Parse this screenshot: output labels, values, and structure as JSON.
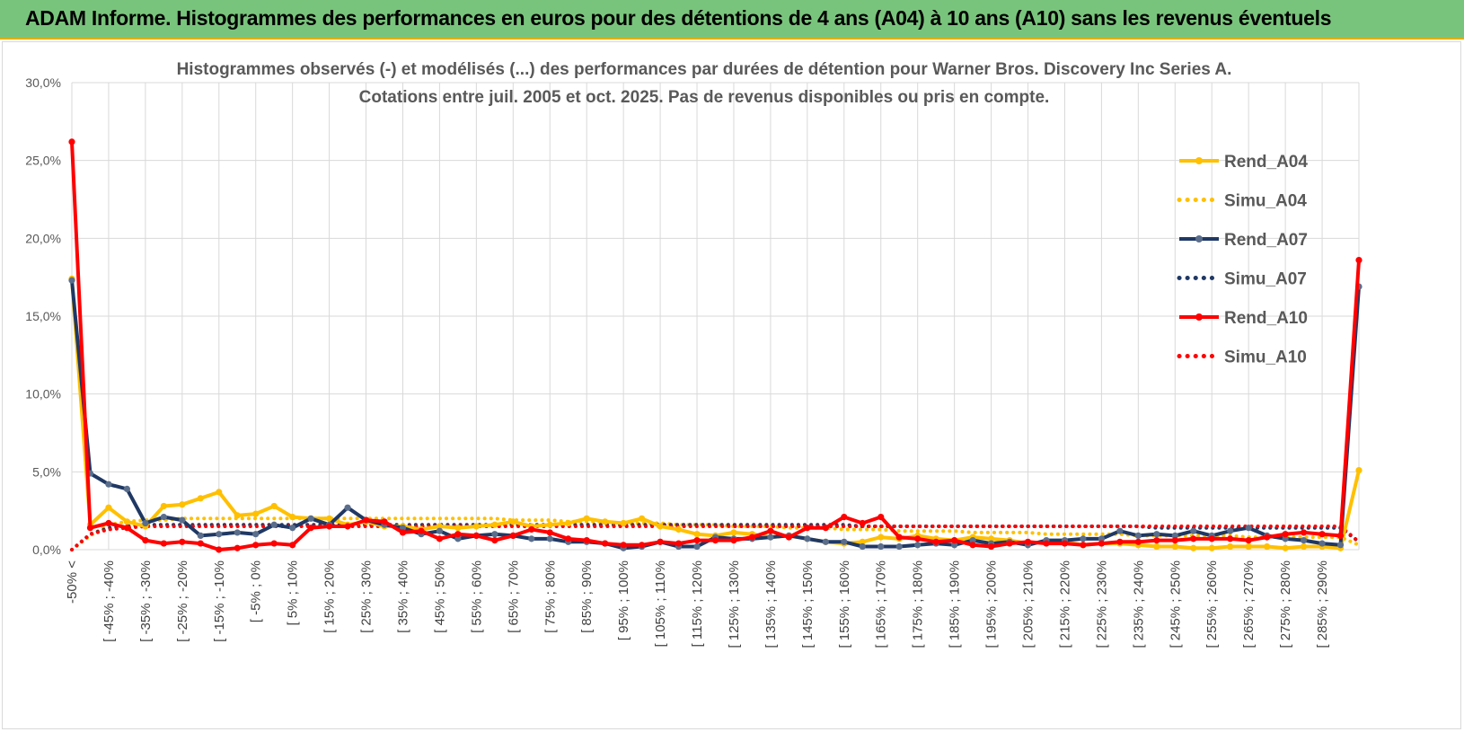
{
  "header": {
    "title": "ADAM Informe. Histogrammes des performances en euros pour des détentions de 4 ans (A04) à 10 ans (A10) sans les revenus éventuels"
  },
  "colors": {
    "banner": "#79c47c",
    "A04": "#FFC000",
    "A07": "#1F3864",
    "A10": "#FF0000",
    "grid": "#d9d9d9",
    "text": "#595959"
  },
  "chart_data": {
    "type": "line",
    "title_line1": "Histogrammes observés (-) et modélisés (...) des performances par durées de détention pour Warner Bros. Discovery Inc Series A.",
    "title_line2": "Cotations entre juil. 2005 et oct. 2025. Pas de revenus disponibles ou pris en compte.",
    "y_ticks": [
      "0,0%",
      "5,0%",
      "10,0%",
      "15,0%",
      "20,0%",
      "25,0%",
      "30,0%"
    ],
    "ylim": [
      0,
      30
    ],
    "grid": true,
    "legend_position": "right",
    "x_labels": [
      "-50% <",
      "[ -45% ; -40%",
      "[ -35% ; -30%",
      "[ -25% ; -20%",
      "[ -15% ; -10%",
      "[ -5% ; 0%",
      "[ 5% ; 10%",
      "[ 15% ; 20%",
      "[ 25% ; 30%",
      "[ 35% ; 40%",
      "[ 45% ; 50%",
      "[ 55% ; 60%",
      "[ 65% ; 70%",
      "[ 75% ; 80%",
      "[ 85% ; 90%",
      "[ 95% ; 100%",
      "[ 105% ; 110%",
      "[ 115% ; 120%",
      "[ 125% ; 130%",
      "[ 135% ; 140%",
      "[ 145% ; 150%",
      "[ 155% ; 160%",
      "[ 165% ; 170%",
      "[ 175% ; 180%",
      "[ 185% ; 190%",
      "[ 195% ; 200%",
      "[ 205% ; 210%",
      "[ 215% ; 220%",
      "[ 225% ; 230%",
      "[ 235% ; 240%",
      "[ 245% ; 250%",
      "[ 255% ; 260%",
      "[ 265% ; 270%",
      "[ 275% ; 280%",
      "[ 285% ; 290%"
    ],
    "bin_count": 71,
    "series": [
      {
        "name": "Rend_A04",
        "key": "A04",
        "style": "solid",
        "values": [
          17.4,
          1.6,
          2.7,
          1.8,
          1.5,
          2.8,
          2.9,
          3.3,
          3.7,
          2.2,
          2.3,
          2.8,
          2.1,
          2.0,
          2.0,
          1.6,
          1.8,
          1.5,
          1.5,
          1.3,
          1.5,
          1.4,
          1.5,
          1.6,
          1.8,
          1.5,
          1.6,
          1.7,
          2.0,
          1.8,
          1.7,
          2.0,
          1.5,
          1.3,
          1.0,
          0.9,
          1.1,
          1.0,
          0.8,
          0.9,
          0.7,
          0.5,
          0.4,
          0.5,
          0.8,
          0.7,
          0.9,
          0.7,
          0.6,
          0.8,
          0.7,
          0.6,
          0.4,
          0.5,
          0.5,
          0.3,
          0.4,
          0.4,
          0.3,
          0.2,
          0.2,
          0.1,
          0.1,
          0.2,
          0.2,
          0.2,
          0.1,
          0.2,
          0.2,
          0.1,
          5.1
        ]
      },
      {
        "name": "Simu_A04",
        "key": "A04",
        "style": "dotted",
        "values": [
          0.0,
          0.9,
          1.6,
          1.8,
          1.9,
          1.9,
          2.0,
          2.0,
          2.0,
          2.0,
          2.0,
          2.0,
          2.0,
          2.0,
          2.0,
          2.0,
          2.0,
          2.0,
          2.0,
          2.0,
          2.0,
          2.0,
          2.0,
          2.0,
          1.9,
          1.9,
          1.9,
          1.8,
          1.8,
          1.8,
          1.7,
          1.7,
          1.7,
          1.6,
          1.6,
          1.6,
          1.5,
          1.5,
          1.5,
          1.4,
          1.4,
          1.4,
          1.3,
          1.3,
          1.3,
          1.2,
          1.2,
          1.2,
          1.2,
          1.1,
          1.1,
          1.1,
          1.1,
          1.0,
          1.0,
          1.0,
          1.0,
          1.0,
          0.9,
          0.9,
          0.9,
          0.9,
          0.9,
          0.9,
          0.8,
          0.8,
          0.8,
          0.8,
          0.8,
          0.8,
          0.3
        ]
      },
      {
        "name": "Rend_A07",
        "key": "A07",
        "style": "solid",
        "values": [
          17.3,
          4.9,
          4.2,
          3.9,
          1.7,
          2.1,
          1.9,
          0.9,
          1.0,
          1.1,
          1.0,
          1.6,
          1.4,
          2.0,
          1.6,
          2.7,
          1.9,
          1.6,
          1.4,
          1.0,
          1.2,
          0.7,
          0.9,
          1.0,
          0.9,
          0.7,
          0.7,
          0.5,
          0.5,
          0.4,
          0.1,
          0.2,
          0.5,
          0.2,
          0.2,
          0.8,
          0.7,
          0.7,
          0.8,
          0.9,
          0.7,
          0.5,
          0.5,
          0.2,
          0.2,
          0.2,
          0.3,
          0.4,
          0.3,
          0.6,
          0.4,
          0.5,
          0.3,
          0.6,
          0.6,
          0.7,
          0.7,
          1.2,
          0.9,
          1.0,
          0.9,
          1.2,
          0.9,
          1.2,
          1.4,
          0.9,
          0.7,
          0.6,
          0.4,
          0.3,
          16.9
        ]
      },
      {
        "name": "Simu_A07",
        "key": "A07",
        "style": "dotted",
        "values": [
          0.0,
          1.0,
          1.4,
          1.5,
          1.6,
          1.6,
          1.6,
          1.6,
          1.6,
          1.6,
          1.6,
          1.6,
          1.6,
          1.6,
          1.6,
          1.6,
          1.6,
          1.6,
          1.6,
          1.6,
          1.6,
          1.6,
          1.6,
          1.6,
          1.6,
          1.6,
          1.6,
          1.6,
          1.6,
          1.6,
          1.6,
          1.6,
          1.6,
          1.6,
          1.6,
          1.6,
          1.6,
          1.6,
          1.6,
          1.6,
          1.6,
          1.6,
          1.6,
          1.5,
          1.5,
          1.5,
          1.5,
          1.5,
          1.5,
          1.5,
          1.5,
          1.5,
          1.5,
          1.5,
          1.5,
          1.5,
          1.5,
          1.5,
          1.5,
          1.4,
          1.4,
          1.4,
          1.4,
          1.4,
          1.4,
          1.4,
          1.4,
          1.4,
          1.4,
          1.4,
          0.5
        ]
      },
      {
        "name": "Rend_A10",
        "key": "A10",
        "style": "solid",
        "values": [
          26.2,
          1.4,
          1.7,
          1.4,
          0.6,
          0.4,
          0.5,
          0.4,
          0.0,
          0.1,
          0.3,
          0.4,
          0.3,
          1.4,
          1.5,
          1.5,
          1.9,
          1.8,
          1.1,
          1.2,
          0.7,
          1.0,
          0.9,
          0.6,
          0.9,
          1.3,
          1.1,
          0.7,
          0.6,
          0.4,
          0.3,
          0.3,
          0.5,
          0.4,
          0.6,
          0.6,
          0.6,
          0.8,
          1.2,
          0.8,
          1.4,
          1.4,
          2.1,
          1.7,
          2.1,
          0.8,
          0.7,
          0.5,
          0.6,
          0.3,
          0.2,
          0.4,
          0.5,
          0.4,
          0.4,
          0.3,
          0.4,
          0.5,
          0.5,
          0.6,
          0.6,
          0.7,
          0.7,
          0.7,
          0.6,
          0.8,
          1.0,
          1.1,
          1.0,
          0.9,
          18.6
        ]
      },
      {
        "name": "Simu_A10",
        "key": "A10",
        "style": "dotted",
        "values": [
          0.0,
          1.0,
          1.3,
          1.4,
          1.5,
          1.5,
          1.5,
          1.5,
          1.5,
          1.5,
          1.5,
          1.5,
          1.5,
          1.5,
          1.5,
          1.5,
          1.5,
          1.5,
          1.5,
          1.5,
          1.5,
          1.5,
          1.5,
          1.5,
          1.5,
          1.5,
          1.5,
          1.5,
          1.5,
          1.5,
          1.5,
          1.5,
          1.5,
          1.5,
          1.5,
          1.5,
          1.5,
          1.5,
          1.5,
          1.5,
          1.5,
          1.5,
          1.5,
          1.5,
          1.5,
          1.5,
          1.5,
          1.5,
          1.5,
          1.5,
          1.5,
          1.5,
          1.5,
          1.5,
          1.5,
          1.5,
          1.5,
          1.5,
          1.5,
          1.5,
          1.5,
          1.5,
          1.5,
          1.5,
          1.5,
          1.5,
          1.5,
          1.5,
          1.5,
          1.5,
          0.5
        ]
      }
    ]
  }
}
